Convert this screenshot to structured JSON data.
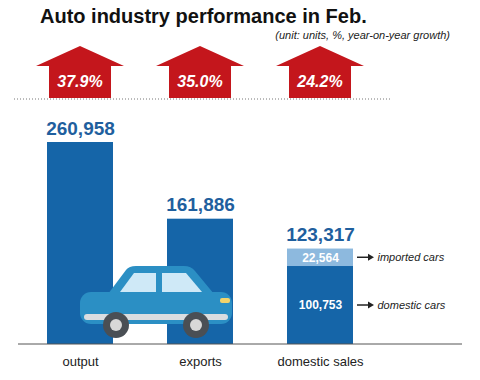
{
  "chart_data": {
    "type": "bar",
    "title": "Auto industry performance in Feb.",
    "subtitle": "(unit: units, %, year-on-year growth)",
    "categories": [
      "output",
      "exports",
      "domestic sales"
    ],
    "values": [
      260958,
      161886,
      123317
    ],
    "value_labels": [
      "260,958",
      "161,886",
      "123,317"
    ],
    "color": "#1565a8",
    "data_labels": true,
    "tick_labels": "x",
    "grid": false,
    "segments": {
      "category": "domestic sales",
      "stacked": true,
      "series": [
        {
          "name": "domestic cars",
          "values": [
            100753
          ],
          "value_labels": [
            "100,753"
          ],
          "color": "#1565a8"
        },
        {
          "name": "imported cars",
          "values": [
            22564
          ],
          "value_labels": [
            "22,564"
          ],
          "color": "#8db9de"
        }
      ]
    },
    "growth": {
      "values": [
        37.9,
        35.0,
        24.2
      ],
      "value_labels": [
        "37.9%",
        "35.0%",
        "24.2%"
      ],
      "color": "#c4161c"
    }
  }
}
